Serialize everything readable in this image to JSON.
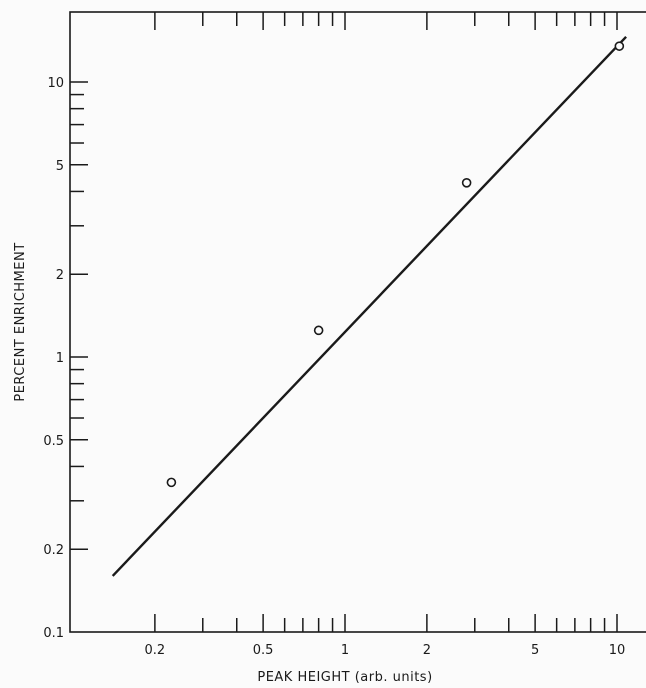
{
  "chart_data": {
    "type": "line",
    "xlabel": "PEAK HEIGHT (arb. units)",
    "ylabel": "PERCENT ENRICHMENT",
    "x_scale": "log",
    "y_scale": "log",
    "xlim": [
      0.13,
      11
    ],
    "ylim": [
      0.1,
      16
    ],
    "x_tick_labels": [
      "0.2",
      "0.5",
      "1",
      "2",
      "5",
      "10"
    ],
    "y_tick_labels": [
      "0.1",
      "0.2",
      "0.5",
      "1",
      "2",
      "5",
      "10"
    ],
    "series": [
      {
        "style": "line",
        "x": [
          0.14,
          10.8
        ],
        "y": [
          0.16,
          14.6
        ]
      },
      {
        "style": "open-circle-markers",
        "x": [
          0.23,
          0.8,
          2.8,
          10.2
        ],
        "y": [
          0.35,
          1.25,
          4.3,
          13.5
        ]
      }
    ],
    "grid": false,
    "legend": "none"
  }
}
